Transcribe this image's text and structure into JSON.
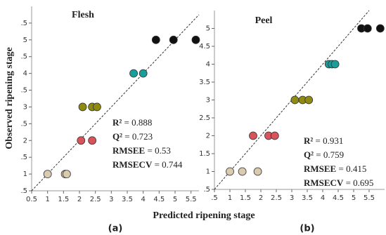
{
  "figure": {
    "ylabel": "Observed ripening stage",
    "xlabel": "Predicted ripening stage"
  },
  "chart_data": [
    {
      "type": "scatter",
      "title": "Flesh",
      "panel_label": "(a)",
      "identity_line": true,
      "xlim": [
        0.5,
        5.75
      ],
      "ylim": [
        0.5,
        6.0
      ],
      "xticks": [
        0.5,
        1,
        1.5,
        2,
        2.5,
        3,
        3.5,
        4,
        4.5,
        5,
        5.5
      ],
      "yticks": [
        {
          "value": 0.5,
          "label": ".5"
        },
        1,
        {
          "value": 1.5,
          "label": ".5"
        },
        2,
        {
          "value": 2.5,
          "label": ".5"
        },
        3,
        {
          "value": 3.5,
          "label": ".5"
        },
        4,
        {
          "value": 4.5,
          "label": ".5"
        },
        5,
        {
          "value": 5.5,
          "label": ".5"
        }
      ],
      "series": [
        {
          "color": "#d8cbb0",
          "x": [
            1.0,
            1.55,
            1.6
          ],
          "values": [
            1,
            1,
            1
          ]
        },
        {
          "color": "#d9535a",
          "x": [
            2.05,
            2.4
          ],
          "values": [
            2,
            2
          ]
        },
        {
          "color": "#8f8a10",
          "x": [
            2.1,
            2.4,
            2.55
          ],
          "values": [
            3,
            3,
            3
          ]
        },
        {
          "color": "#1a9e9a",
          "x": [
            3.7,
            4.0
          ],
          "values": [
            4,
            4
          ]
        },
        {
          "color": "#111111",
          "x": [
            4.4,
            4.95,
            5.65
          ],
          "values": [
            5,
            5,
            5
          ]
        }
      ],
      "stats": [
        {
          "label": "R²",
          "text": " = 0.888"
        },
        {
          "label": "Q²",
          "text": " = 0.723"
        },
        {
          "label": "RMSEE",
          "text": " = 0.53"
        },
        {
          "label": "RMSECV",
          "text": " = 0.744"
        }
      ]
    },
    {
      "type": "scatter",
      "title": "Peel",
      "panel_label": "(b)",
      "identity_line": true,
      "xlim": [
        0.5,
        6.0
      ],
      "ylim": [
        0.5,
        5.5
      ],
      "xticks": [
        {
          "value": 0.5,
          "label": ".5"
        },
        1,
        1.5,
        2,
        2.5,
        3,
        3.5,
        4,
        4.5,
        5,
        5.5
      ],
      "yticks": [
        {
          "value": 0.5,
          "label": ".5"
        },
        1,
        1.5,
        2,
        2.5,
        3,
        3.5,
        4,
        4.5,
        5
      ],
      "series": [
        {
          "color": "#d8cbb0",
          "x": [
            1.0,
            1.4,
            1.9
          ],
          "values": [
            1,
            1,
            1
          ]
        },
        {
          "color": "#d9535a",
          "x": [
            1.75,
            2.25,
            2.45
          ],
          "values": [
            2,
            2,
            2
          ]
        },
        {
          "color": "#8f8a10",
          "x": [
            3.1,
            3.35,
            3.55
          ],
          "values": [
            3,
            3,
            3
          ]
        },
        {
          "color": "#1a9e9a",
          "x": [
            4.2,
            4.3,
            4.4
          ],
          "values": [
            4,
            4,
            4
          ]
        },
        {
          "color": "#111111",
          "x": [
            5.25,
            5.45,
            5.86
          ],
          "values": [
            5,
            5,
            5
          ]
        }
      ],
      "stats": [
        {
          "label": "R²",
          "text": " = 0.931"
        },
        {
          "label": "Q²",
          "text": " = 0.759"
        },
        {
          "label": "RMSEE",
          "text": " = 0.415"
        },
        {
          "label": "RMSECV",
          "text": " = 0.695"
        }
      ]
    }
  ]
}
